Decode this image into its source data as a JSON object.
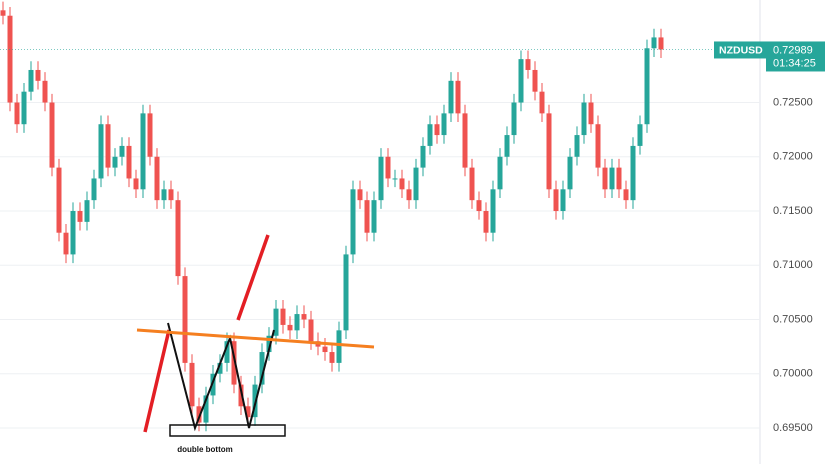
{
  "chart_data": {
    "type": "candlestick",
    "symbol": "NZDUSD",
    "last_price": 0.72989,
    "countdown": "01:34:25",
    "annotation": "double bottom",
    "up_color": "#26a69a",
    "down_color": "#ef5350",
    "grid": true,
    "open": [
      0.7335,
      0.733,
      0.725,
      0.723,
      0.726,
      0.728,
      0.727,
      0.725,
      0.719,
      0.713,
      0.711,
      0.715,
      0.714,
      0.716,
      0.718,
      0.723,
      0.719,
      0.72,
      0.721,
      0.718,
      0.717,
      0.724,
      0.72,
      0.716,
      0.717,
      0.716,
      0.709,
      0.701,
      0.697,
      0.6955,
      0.698,
      0.7,
      0.701,
      0.703,
      0.699,
      0.697,
      0.696,
      0.699,
      0.702,
      0.7035,
      0.706,
      0.7045,
      0.704,
      0.7055,
      0.705,
      0.703,
      0.7025,
      0.702,
      0.701,
      0.704,
      0.711,
      0.717,
      0.716,
      0.713,
      0.716,
      0.72,
      0.718,
      0.718,
      0.717,
      0.716,
      0.719,
      0.721,
      0.723,
      0.722,
      0.724,
      0.727,
      0.724,
      0.719,
      0.716,
      0.715,
      0.713,
      0.717,
      0.72,
      0.722,
      0.725,
      0.729,
      0.728,
      0.726,
      0.724,
      0.717,
      0.715,
      0.717,
      0.72,
      0.722,
      0.725,
      0.723,
      0.719,
      0.717,
      0.719,
      0.717,
      0.716,
      0.721,
      0.723,
      0.73,
      0.731
    ],
    "high": [
      0.7343,
      0.7338,
      0.7258,
      0.7268,
      0.7288,
      0.7288,
      0.7278,
      0.7258,
      0.7198,
      0.7138,
      0.7158,
      0.7158,
      0.7168,
      0.7188,
      0.7238,
      0.7238,
      0.7208,
      0.7218,
      0.7218,
      0.7188,
      0.7248,
      0.7248,
      0.7208,
      0.7178,
      0.7178,
      0.7168,
      0.7098,
      0.7018,
      0.6978,
      0.6988,
      0.7008,
      0.7018,
      0.7038,
      0.7038,
      0.6998,
      0.6978,
      0.6998,
      0.7028,
      0.7043,
      0.7068,
      0.7068,
      0.7053,
      0.7063,
      0.7063,
      0.7058,
      0.7038,
      0.7033,
      0.7028,
      0.7048,
      0.7118,
      0.7178,
      0.7178,
      0.7168,
      0.7168,
      0.7208,
      0.7208,
      0.7188,
      0.7188,
      0.7178,
      0.7198,
      0.7218,
      0.7238,
      0.7238,
      0.7248,
      0.7278,
      0.7278,
      0.7248,
      0.7198,
      0.7168,
      0.7158,
      0.7178,
      0.7208,
      0.7228,
      0.7258,
      0.7298,
      0.7298,
      0.7288,
      0.7268,
      0.7248,
      0.7178,
      0.7178,
      0.7208,
      0.7228,
      0.7258,
      0.7258,
      0.7238,
      0.7198,
      0.7198,
      0.7198,
      0.7178,
      0.7218,
      0.7238,
      0.7308,
      0.7318,
      0.7318
    ],
    "low": [
      0.7322,
      0.7242,
      0.7222,
      0.7222,
      0.7252,
      0.7262,
      0.7242,
      0.7182,
      0.7122,
      0.7102,
      0.7102,
      0.7132,
      0.7132,
      0.7152,
      0.7172,
      0.7182,
      0.7182,
      0.7192,
      0.7172,
      0.7162,
      0.7162,
      0.7192,
      0.7152,
      0.7152,
      0.7152,
      0.7082,
      0.7002,
      0.6962,
      0.6947,
      0.6947,
      0.6972,
      0.6992,
      0.7002,
      0.6982,
      0.6962,
      0.6952,
      0.6952,
      0.6982,
      0.7012,
      0.7027,
      0.7037,
      0.7032,
      0.7032,
      0.7042,
      0.7022,
      0.7017,
      0.7012,
      0.7002,
      0.7002,
      0.7032,
      0.7102,
      0.7152,
      0.7122,
      0.7122,
      0.7152,
      0.7172,
      0.7172,
      0.7162,
      0.7152,
      0.7152,
      0.7182,
      0.7202,
      0.7212,
      0.7212,
      0.7232,
      0.7232,
      0.7182,
      0.7152,
      0.7142,
      0.7122,
      0.7122,
      0.7162,
      0.7192,
      0.7212,
      0.7242,
      0.7272,
      0.7252,
      0.7232,
      0.7162,
      0.7142,
      0.7142,
      0.7162,
      0.7192,
      0.7212,
      0.7222,
      0.7182,
      0.7162,
      0.7162,
      0.7162,
      0.7152,
      0.7152,
      0.7202,
      0.7222,
      0.7292,
      0.7291
    ],
    "close": [
      0.733,
      0.725,
      0.723,
      0.726,
      0.728,
      0.727,
      0.725,
      0.719,
      0.713,
      0.711,
      0.715,
      0.714,
      0.716,
      0.718,
      0.723,
      0.719,
      0.72,
      0.721,
      0.718,
      0.717,
      0.724,
      0.72,
      0.716,
      0.717,
      0.716,
      0.709,
      0.701,
      0.697,
      0.6955,
      0.698,
      0.7,
      0.701,
      0.703,
      0.699,
      0.697,
      0.696,
      0.699,
      0.702,
      0.7035,
      0.706,
      0.7045,
      0.704,
      0.7055,
      0.705,
      0.703,
      0.7025,
      0.702,
      0.701,
      0.704,
      0.711,
      0.717,
      0.716,
      0.713,
      0.716,
      0.72,
      0.718,
      0.718,
      0.717,
      0.716,
      0.719,
      0.721,
      0.723,
      0.722,
      0.724,
      0.727,
      0.724,
      0.719,
      0.716,
      0.715,
      0.713,
      0.717,
      0.72,
      0.722,
      0.725,
      0.729,
      0.728,
      0.726,
      0.724,
      0.717,
      0.715,
      0.717,
      0.72,
      0.722,
      0.725,
      0.723,
      0.719,
      0.717,
      0.719,
      0.717,
      0.716,
      0.721,
      0.723,
      0.73,
      0.731,
      0.72989
    ],
    "ylim": [
      0.69168,
      0.73445
    ],
    "yticks": [
      {
        "value": 0.695,
        "label": "0.69500"
      },
      {
        "value": 0.7,
        "label": "0.70000"
      },
      {
        "value": 0.705,
        "label": "0.70500"
      },
      {
        "value": 0.71,
        "label": "0.71000"
      },
      {
        "value": 0.715,
        "label": "0.71500"
      },
      {
        "value": 0.72,
        "label": "0.72000"
      },
      {
        "value": 0.725,
        "label": "0.72500"
      }
    ]
  }
}
